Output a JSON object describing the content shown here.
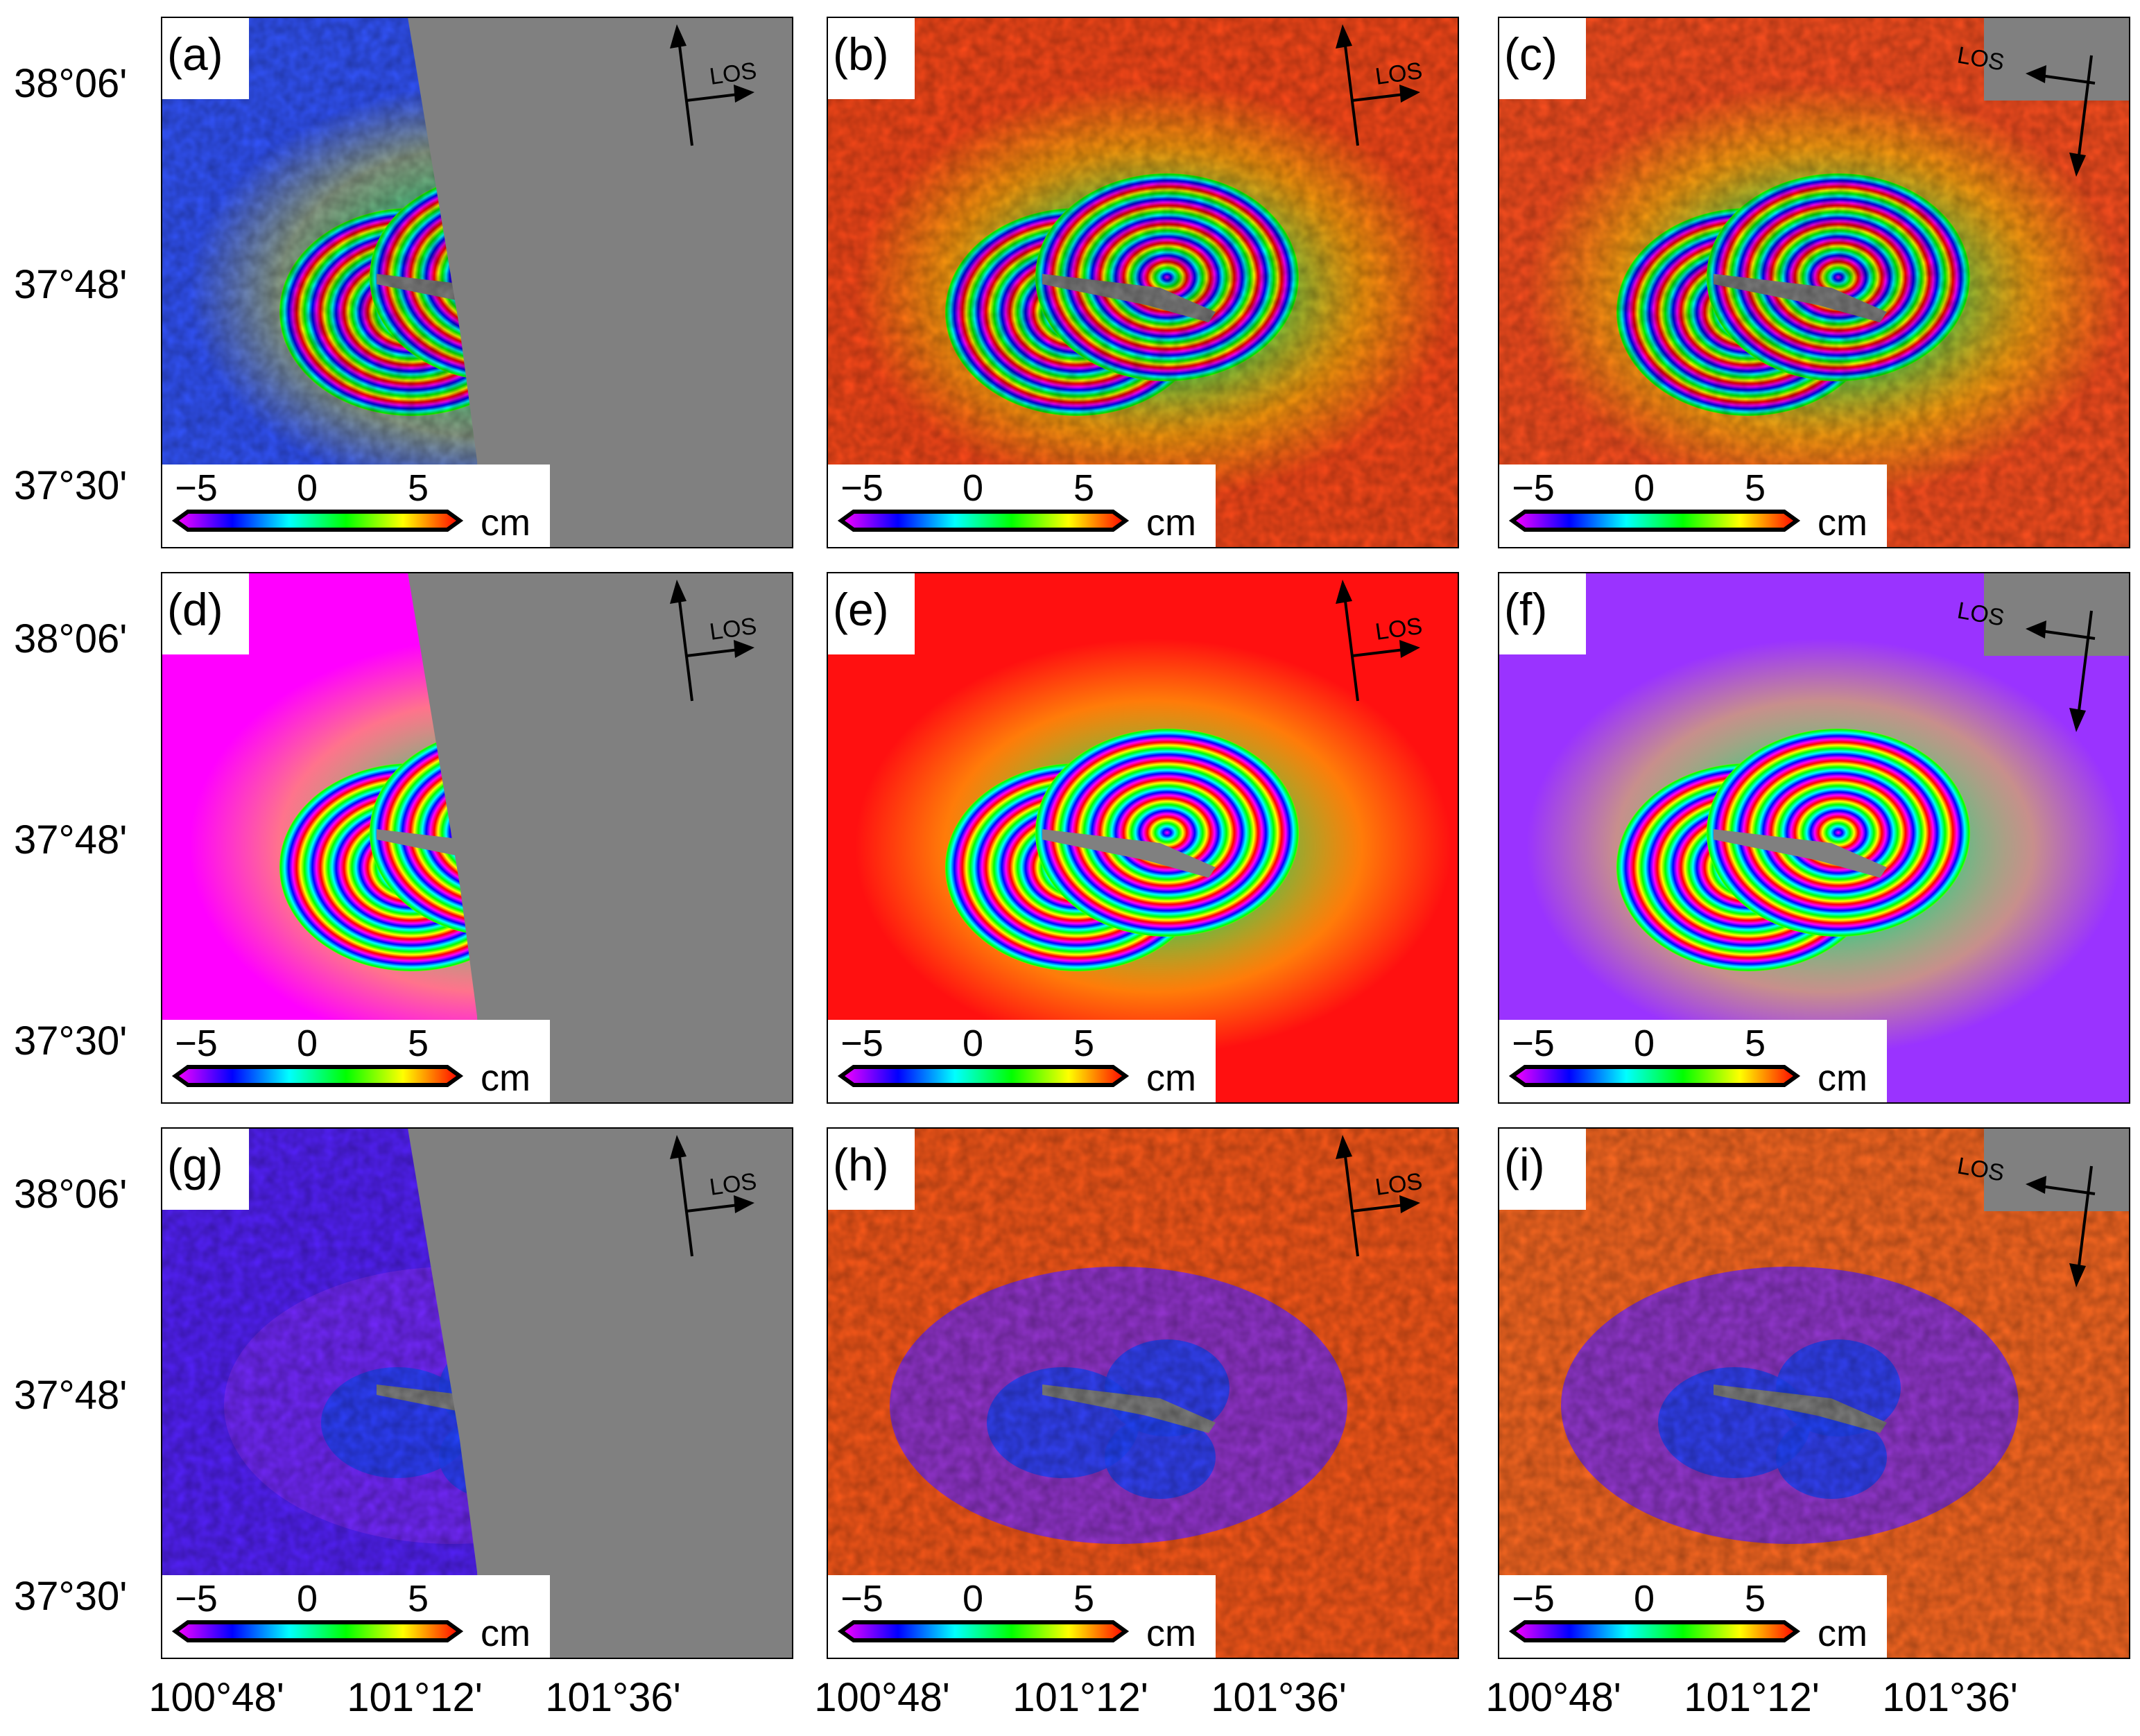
{
  "panels": [
    {
      "label": "(a)",
      "kind": "observed",
      "coverage": "west",
      "los": "descending-left"
    },
    {
      "label": "(b)",
      "kind": "observed",
      "coverage": "full",
      "los": "descending-left"
    },
    {
      "label": "(c)",
      "kind": "observed",
      "coverage": "full",
      "los": "ascending-right"
    },
    {
      "label": "(d)",
      "kind": "model",
      "coverage": "west",
      "los": "descending-left"
    },
    {
      "label": "(e)",
      "kind": "model",
      "coverage": "full",
      "los": "descending-left"
    },
    {
      "label": "(f)",
      "kind": "model",
      "coverage": "full",
      "los": "ascending-right"
    },
    {
      "label": "(g)",
      "kind": "residual",
      "coverage": "west",
      "los": "descending-left"
    },
    {
      "label": "(h)",
      "kind": "residual",
      "coverage": "full",
      "los": "descending-left"
    },
    {
      "label": "(i)",
      "kind": "residual",
      "coverage": "full",
      "los": "ascending-right"
    }
  ],
  "los_label": "LOS",
  "colorbar": {
    "ticks": [
      "−5",
      "0",
      "5"
    ],
    "unit": "cm",
    "colors": [
      "#ff00ff",
      "#0000ff",
      "#00ffff",
      "#00ff00",
      "#ffff00",
      "#ff0000"
    ]
  },
  "latitude_labels": [
    "38°06'",
    "37°48'",
    "37°30'"
  ],
  "longitude_labels": [
    "100°48'",
    "101°12'",
    "101°36'"
  ],
  "no_data_color": "#808080"
}
